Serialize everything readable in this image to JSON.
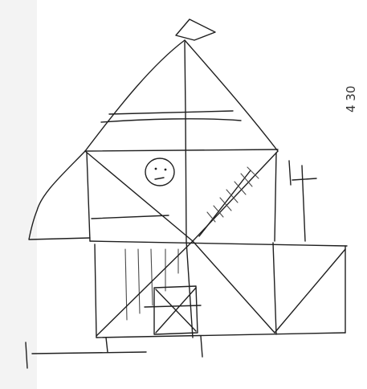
{
  "sheet": {
    "background": "#ffffff",
    "edge_shading": "#f3f3f3",
    "ink_color": "#1f1f1f"
  },
  "margin_note": {
    "text": "4 30"
  }
}
